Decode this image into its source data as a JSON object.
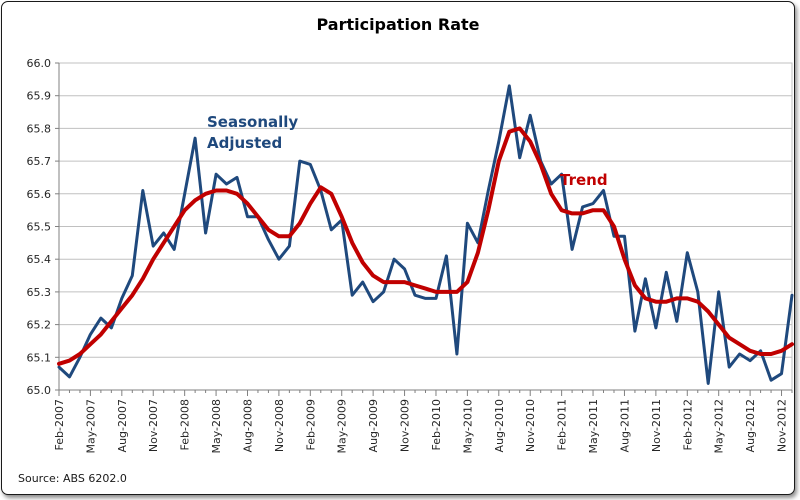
{
  "frame": {
    "title": "Participation Rate",
    "source_note": "Source: ABS 6202.0"
  },
  "annotations": {
    "sa_label_line1": "Seasonally",
    "sa_label_line2": "Adjusted",
    "trend_label": "Trend"
  },
  "chart_data": {
    "type": "line",
    "title": "Participation Rate",
    "xlabel": "",
    "ylabel": "",
    "ylim": [
      65.0,
      66.0
    ],
    "y_tick_step": 0.1,
    "y_tick_labels": [
      "66.0",
      "65.9",
      "65.8",
      "65.7",
      "65.6",
      "65.5",
      "65.4",
      "65.3",
      "65.2",
      "65.1",
      "65.0"
    ],
    "x_frequency": "monthly",
    "points_per_series": 71,
    "x_label_every_n_points": 3,
    "x_tick_labels": [
      "Feb-2007",
      "May-2007",
      "Aug-2007",
      "Nov-2007",
      "Feb-2008",
      "May-2008",
      "Aug-2008",
      "Nov-2008",
      "Feb-2009",
      "May-2009",
      "Aug-2009",
      "Nov-2009",
      "Feb-2010",
      "May-2010",
      "Aug-2010",
      "Nov-2010",
      "Feb-2011",
      "May-2011",
      "Aug-2011",
      "Nov-2011",
      "Feb-2012",
      "May-2012",
      "Aug-2012",
      "Nov-2012"
    ],
    "grid": "horizontal-only",
    "legend": "inline-text-annotations",
    "source_note": "Source: ABS 6202.0",
    "series": [
      {
        "name": "Seasonally Adjusted",
        "color": "#1F497D",
        "line_width": 3,
        "values": [
          65.07,
          65.04,
          65.1,
          65.17,
          65.22,
          65.19,
          65.28,
          65.35,
          65.61,
          65.44,
          65.48,
          65.43,
          65.6,
          65.77,
          65.48,
          65.66,
          65.63,
          65.65,
          65.53,
          65.53,
          65.46,
          65.4,
          65.44,
          65.7,
          65.69,
          65.61,
          65.49,
          65.52,
          65.29,
          65.33,
          65.27,
          65.3,
          65.4,
          65.37,
          65.29,
          65.28,
          65.28,
          65.41,
          65.11,
          65.51,
          65.45,
          65.61,
          65.76,
          65.93,
          65.71,
          65.84,
          65.7,
          65.63,
          65.66,
          65.43,
          65.56,
          65.57,
          65.61,
          65.47,
          65.47,
          65.18,
          65.34,
          65.19,
          65.36,
          65.21,
          65.42,
          65.3,
          65.02,
          65.3,
          65.07,
          65.11,
          65.09,
          65.12,
          65.03,
          65.05,
          65.29
        ]
      },
      {
        "name": "Trend",
        "color": "#C00000",
        "line_width": 4,
        "values": [
          65.08,
          65.09,
          65.11,
          65.14,
          65.17,
          65.21,
          65.25,
          65.29,
          65.34,
          65.4,
          65.45,
          65.5,
          65.55,
          65.58,
          65.6,
          65.61,
          65.61,
          65.6,
          65.57,
          65.53,
          65.49,
          65.47,
          65.47,
          65.51,
          65.57,
          65.62,
          65.6,
          65.53,
          65.45,
          65.39,
          65.35,
          65.33,
          65.33,
          65.33,
          65.32,
          65.31,
          65.3,
          65.3,
          65.3,
          65.33,
          65.42,
          65.55,
          65.7,
          65.79,
          65.8,
          65.76,
          65.69,
          65.6,
          65.55,
          65.54,
          65.54,
          65.55,
          65.55,
          65.5,
          65.4,
          65.32,
          65.28,
          65.27,
          65.27,
          65.28,
          65.28,
          65.27,
          65.24,
          65.2,
          65.16,
          65.14,
          65.12,
          65.11,
          65.11,
          65.12,
          65.14
        ]
      }
    ],
    "colors": {
      "gridline": "#C0C0C0",
      "axis": "#808080",
      "tick_text": "#262626",
      "background": "#FFFFFF"
    }
  }
}
